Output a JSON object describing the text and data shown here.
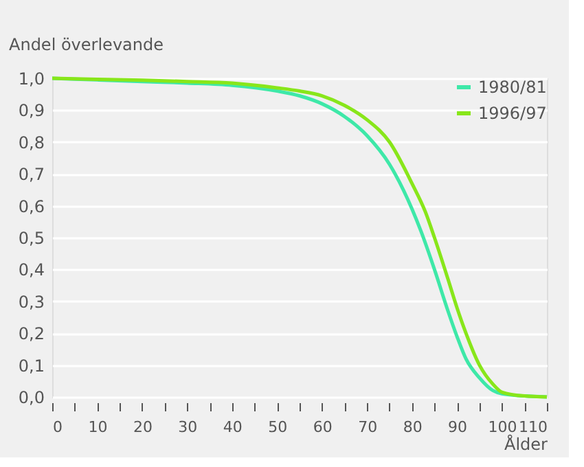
{
  "chart_data": {
    "type": "line",
    "xlabel": "Ålder",
    "ylabel": "Andel överlevande",
    "series": [
      {
        "name": "1980/81",
        "color": "#3ee8a8",
        "x": [
          0,
          10,
          20,
          30,
          40,
          50,
          55,
          60,
          65,
          70,
          75,
          80,
          82,
          85,
          88,
          90,
          92,
          95,
          98,
          100,
          105,
          110
        ],
        "values": [
          1.0,
          0.995,
          0.99,
          0.985,
          0.978,
          0.96,
          0.945,
          0.92,
          0.88,
          0.82,
          0.73,
          0.59,
          0.52,
          0.4,
          0.27,
          0.19,
          0.12,
          0.06,
          0.02,
          0.01,
          0.003,
          0.0
        ]
      },
      {
        "name": "1996/97",
        "color": "#88e61a",
        "x": [
          0,
          10,
          20,
          30,
          40,
          50,
          55,
          60,
          65,
          70,
          75,
          80,
          83,
          85,
          88,
          90,
          92,
          95,
          98,
          100,
          105,
          110
        ],
        "values": [
          1.0,
          0.997,
          0.994,
          0.99,
          0.985,
          0.97,
          0.96,
          0.945,
          0.915,
          0.87,
          0.8,
          0.67,
          0.58,
          0.5,
          0.37,
          0.28,
          0.2,
          0.1,
          0.04,
          0.015,
          0.003,
          0.0
        ]
      }
    ],
    "xlim": [
      0,
      110
    ],
    "xticks": [
      0,
      {
        "value": 5,
        "label": null
      },
      10,
      {
        "value": 15,
        "label": null
      },
      20,
      {
        "value": 25,
        "label": null
      },
      30,
      {
        "value": 35,
        "label": null
      },
      40,
      {
        "value": 45,
        "label": null
      },
      50,
      {
        "value": 55,
        "label": null
      },
      60,
      {
        "value": 65,
        "label": null
      },
      70,
      {
        "value": 75,
        "label": null
      },
      80,
      {
        "value": 85,
        "label": null
      },
      90,
      {
        "value": 95,
        "label": null
      },
      100,
      {
        "value": 105,
        "label": null
      },
      110
    ],
    "ylim": [
      0,
      1
    ],
    "yticks": [
      {
        "value": 0,
        "label": "0,0"
      },
      {
        "value": 0.1,
        "label": "0,1"
      },
      {
        "value": 0.2,
        "label": "0,2"
      },
      {
        "value": 0.3,
        "label": "0,3"
      },
      {
        "value": 0.4,
        "label": "0,4"
      },
      {
        "value": 0.5,
        "label": "0,5"
      },
      {
        "value": 0.6,
        "label": "0,6"
      },
      {
        "value": 0.7,
        "label": "0,7"
      },
      {
        "value": 0.8,
        "label": "0,8"
      },
      {
        "value": 0.9,
        "label": "0,9"
      },
      {
        "value": 1,
        "label": "1,0"
      }
    ],
    "grid": "y",
    "legend": "top right",
    "marker": "none",
    "line_style": "solid"
  }
}
